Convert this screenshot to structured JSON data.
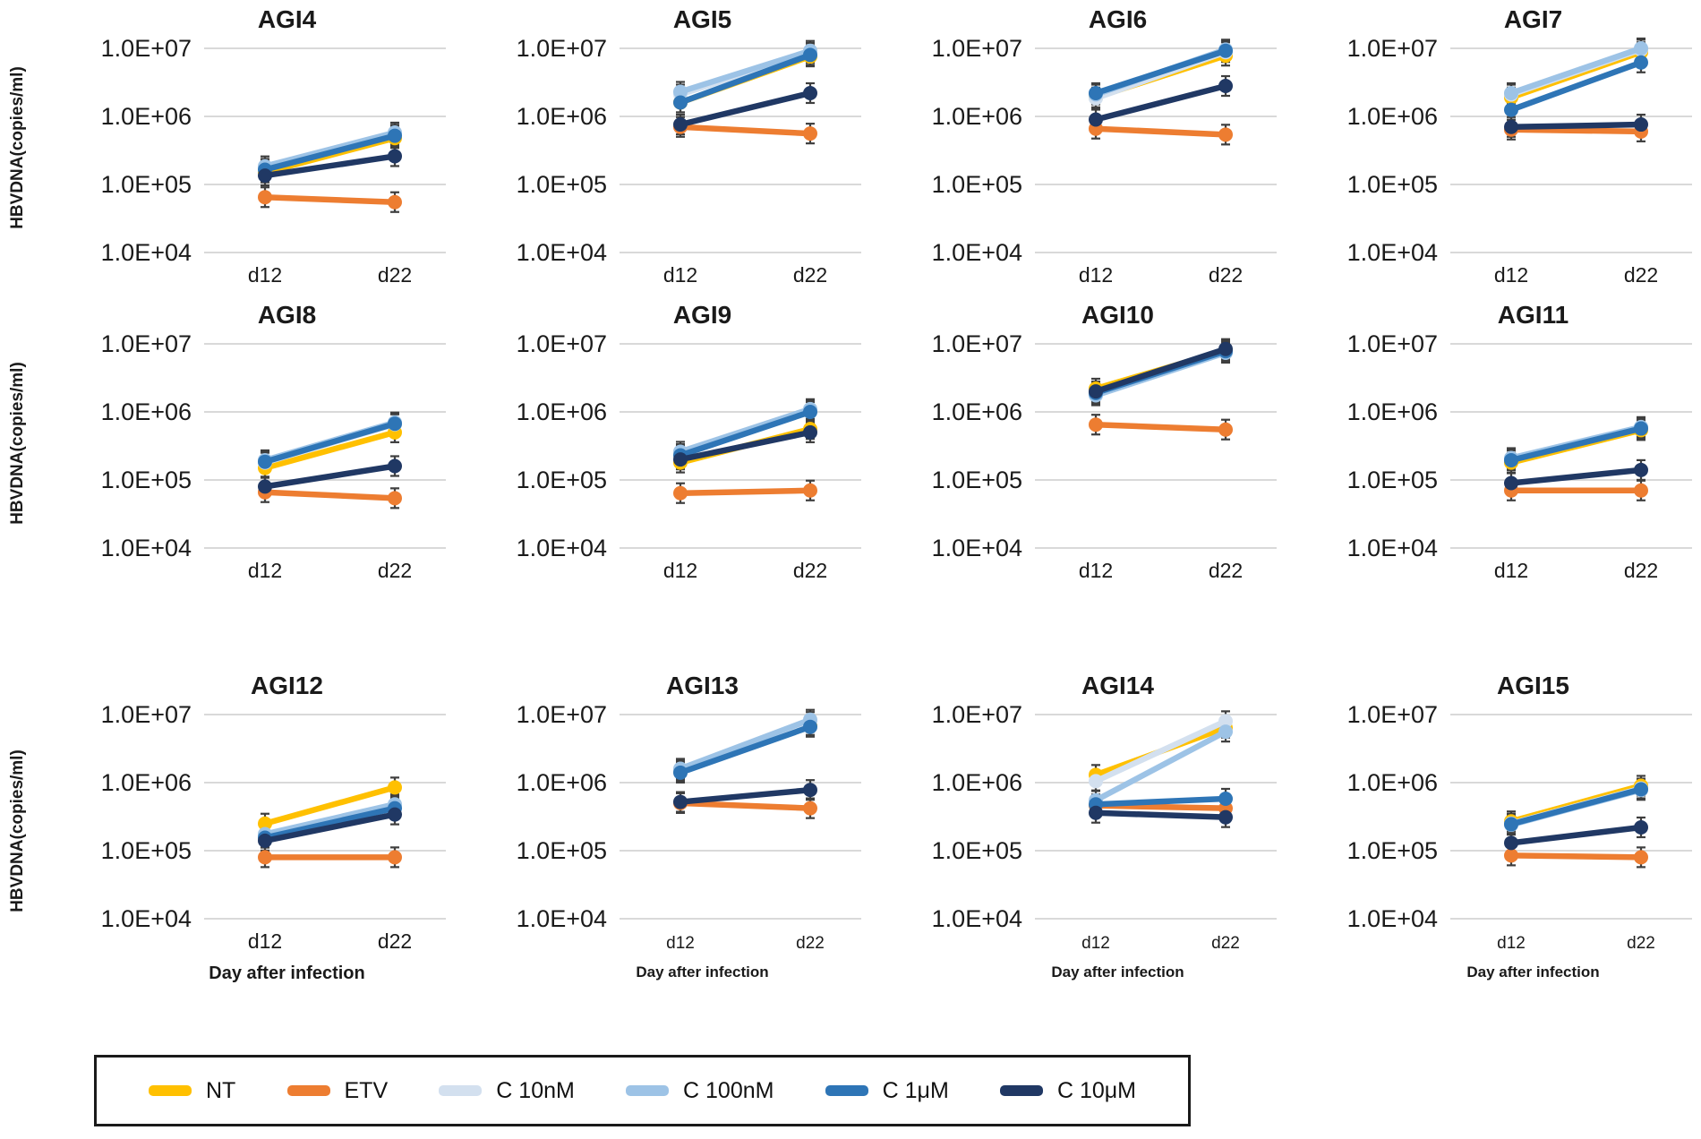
{
  "y_axis_label": "HBVDNA(copies/ml)",
  "x_axis_label": "Day after infection",
  "y_ticks": [
    "1.0E+07",
    "1.0E+06",
    "1.0E+05",
    "1.0E+04"
  ],
  "colors": {
    "gridline": "#d9d9d9",
    "error_bar": "#3f3f3f",
    "legend_border": "#1a1a1a"
  },
  "legend": [
    {
      "name": "NT",
      "label": "NT",
      "color": "#FFC000"
    },
    {
      "name": "ETV",
      "label": "ETV",
      "color": "#ED7D31"
    },
    {
      "name": "C 10nM",
      "label": "C 10nM",
      "color": "#D3E0EF"
    },
    {
      "name": "C 100nM",
      "label": "C 100nM",
      "color": "#9DC3E6"
    },
    {
      "name": "C 1μM",
      "label": "C 1μM",
      "color": "#2E75B6"
    },
    {
      "name": "C 10μM",
      "label": "C 10μM",
      "color": "#203864"
    }
  ],
  "chart_data": [
    {
      "type": "line",
      "title": "AGI4",
      "x": [
        "d12",
        "d22"
      ],
      "yscale": "log",
      "ylim": [
        10000.0,
        10000000.0
      ],
      "grid": true,
      "series": [
        {
          "name": "NT",
          "values": [
            150000.0,
            480000.0
          ]
        },
        {
          "name": "ETV",
          "values": [
            65000.0,
            55000.0
          ]
        },
        {
          "name": "C 10nM",
          "values": [
            170000.0,
            540000.0
          ]
        },
        {
          "name": "C 100nM",
          "values": [
            185000.0,
            580000.0
          ]
        },
        {
          "name": "C 1μM",
          "values": [
            165000.0,
            520000.0
          ]
        },
        {
          "name": "C 10μM",
          "values": [
            135000.0,
            260000.0
          ]
        }
      ]
    },
    {
      "type": "line",
      "title": "AGI5",
      "x": [
        "d12",
        "d22"
      ],
      "yscale": "log",
      "ylim": [
        10000.0,
        10000000.0
      ],
      "grid": true,
      "series": [
        {
          "name": "NT",
          "values": [
            1600000.0,
            7600000.0
          ]
        },
        {
          "name": "ETV",
          "values": [
            700000.0,
            560000.0
          ]
        },
        {
          "name": "C 10nM",
          "values": [
            2100000.0,
            8600000.0
          ]
        },
        {
          "name": "C 100nM",
          "values": [
            2300000.0,
            9200000.0
          ]
        },
        {
          "name": "C 1μM",
          "values": [
            1600000.0,
            8000000.0
          ]
        },
        {
          "name": "C 10μM",
          "values": [
            760000.0,
            2200000.0
          ]
        }
      ]
    },
    {
      "type": "line",
      "title": "AGI6",
      "x": [
        "d12",
        "d22"
      ],
      "yscale": "log",
      "ylim": [
        10000.0,
        10000000.0
      ],
      "grid": true,
      "series": [
        {
          "name": "NT",
          "values": [
            1900000.0,
            7800000.0
          ]
        },
        {
          "name": "ETV",
          "values": [
            660000.0,
            540000.0
          ]
        },
        {
          "name": "C 10nM",
          "values": [
            1850000.0,
            8800000.0
          ]
        },
        {
          "name": "C 100nM",
          "values": [
            2100000.0,
            9600000.0
          ]
        },
        {
          "name": "C 1μM",
          "values": [
            2200000.0,
            9200000.0
          ]
        },
        {
          "name": "C 10μM",
          "values": [
            900000.0,
            2800000.0
          ]
        }
      ]
    },
    {
      "type": "line",
      "title": "AGI7",
      "x": [
        "d12",
        "d22"
      ],
      "yscale": "log",
      "ylim": [
        10000.0,
        10000000.0
      ],
      "grid": true,
      "series": [
        {
          "name": "NT",
          "values": [
            1900000.0,
            8800000.0
          ]
        },
        {
          "name": "ETV",
          "values": [
            640000.0,
            600000.0
          ]
        },
        {
          "name": "C 10nM",
          "values": [
            2100000.0,
            9600000.0
          ]
        },
        {
          "name": "C 100nM",
          "values": [
            2200000.0,
            10000000.0
          ]
        },
        {
          "name": "C 1μM",
          "values": [
            1250000.0,
            6200000.0
          ]
        },
        {
          "name": "C 10μM",
          "values": [
            700000.0,
            760000.0
          ]
        }
      ]
    },
    {
      "type": "line",
      "title": "AGI8",
      "x": [
        "d12",
        "d22"
      ],
      "yscale": "log",
      "ylim": [
        10000.0,
        10000000.0
      ],
      "grid": true,
      "series": [
        {
          "name": "NT",
          "values": [
            150000.0,
            500000.0
          ]
        },
        {
          "name": "ETV",
          "values": [
            66000.0,
            54000.0
          ]
        },
        {
          "name": "C 10nM",
          "values": [
            180000.0,
            660000.0
          ]
        },
        {
          "name": "C 100nM",
          "values": [
            195000.0,
            700000.0
          ]
        },
        {
          "name": "C 1μM",
          "values": [
            185000.0,
            670000.0
          ]
        },
        {
          "name": "C 10μM",
          "values": [
            80000.0,
            160000.0
          ]
        }
      ]
    },
    {
      "type": "line",
      "title": "AGI9",
      "x": [
        "d12",
        "d22"
      ],
      "yscale": "log",
      "ylim": [
        10000.0,
        10000000.0
      ],
      "grid": true,
      "series": [
        {
          "name": "NT",
          "values": [
            180000.0,
            560000.0
          ]
        },
        {
          "name": "ETV",
          "values": [
            64000.0,
            70000.0
          ]
        },
        {
          "name": "C 10nM",
          "values": [
            240000.0,
            1050000.0
          ]
        },
        {
          "name": "C 100nM",
          "values": [
            260000.0,
            1100000.0
          ]
        },
        {
          "name": "C 1μM",
          "values": [
            230000.0,
            1000000.0
          ]
        },
        {
          "name": "C 10μM",
          "values": [
            200000.0,
            500000.0
          ]
        }
      ]
    },
    {
      "type": "line",
      "title": "AGI10",
      "x": [
        "d12",
        "d22"
      ],
      "yscale": "log",
      "ylim": [
        10000.0,
        10000000.0
      ],
      "grid": true,
      "series": [
        {
          "name": "NT",
          "values": [
            2200000.0,
            8000000.0
          ]
        },
        {
          "name": "ETV",
          "values": [
            650000.0,
            550000.0
          ]
        },
        {
          "name": "C 10nM",
          "values": [
            1800000.0,
            7600000.0
          ]
        },
        {
          "name": "C 100nM",
          "values": [
            1750000.0,
            7400000.0
          ]
        },
        {
          "name": "C 1μM",
          "values": [
            1900000.0,
            7800000.0
          ]
        },
        {
          "name": "C 10μM",
          "values": [
            2000000.0,
            8400000.0
          ]
        }
      ]
    },
    {
      "type": "line",
      "title": "AGI11",
      "x": [
        "d12",
        "d22"
      ],
      "yscale": "log",
      "ylim": [
        10000.0,
        10000000.0
      ],
      "grid": true,
      "series": [
        {
          "name": "NT",
          "values": [
            180000.0,
            540000.0
          ]
        },
        {
          "name": "ETV",
          "values": [
            70000.0,
            70000.0
          ]
        },
        {
          "name": "C 10nM",
          "values": [
            200000.0,
            580000.0
          ]
        },
        {
          "name": "C 100nM",
          "values": [
            210000.0,
            600000.0
          ]
        },
        {
          "name": "C 1μM",
          "values": [
            195000.0,
            570000.0
          ]
        },
        {
          "name": "C 10μM",
          "values": [
            90000.0,
            140000.0
          ]
        }
      ]
    },
    {
      "type": "line",
      "title": "AGI12",
      "x": [
        "d12",
        "d22"
      ],
      "yscale": "log",
      "ylim": [
        10000.0,
        10000000.0
      ],
      "grid": true,
      "big_xlabel": true,
      "series": [
        {
          "name": "NT",
          "values": [
            250000.0,
            850000.0
          ]
        },
        {
          "name": "ETV",
          "values": [
            80000.0,
            80000.0
          ]
        },
        {
          "name": "C 10nM",
          "values": [
            170000.0,
            460000.0
          ]
        },
        {
          "name": "C 100nM",
          "values": [
            175000.0,
            480000.0
          ]
        },
        {
          "name": "C 1μM",
          "values": [
            155000.0,
            420000.0
          ]
        },
        {
          "name": "C 10μM",
          "values": [
            140000.0,
            340000.0
          ]
        }
      ]
    },
    {
      "type": "line",
      "title": "AGI13",
      "x": [
        "d12",
        "d22"
      ],
      "yscale": "log",
      "ylim": [
        10000.0,
        10000000.0
      ],
      "grid": true,
      "small_ticks": true,
      "series": [
        {
          "name": "NT",
          "values": [
            1450000.0,
            7000000.0
          ]
        },
        {
          "name": "ETV",
          "values": [
            500000.0,
            420000.0
          ]
        },
        {
          "name": "C 10nM",
          "values": [
            1500000.0,
            7800000.0
          ]
        },
        {
          "name": "C 100nM",
          "values": [
            1600000.0,
            8400000.0
          ]
        },
        {
          "name": "C 1μM",
          "values": [
            1400000.0,
            6600000.0
          ]
        },
        {
          "name": "C 10μM",
          "values": [
            520000.0,
            780000.0
          ]
        }
      ]
    },
    {
      "type": "line",
      "title": "AGI14",
      "x": [
        "d12",
        "d22"
      ],
      "yscale": "log",
      "ylim": [
        10000.0,
        10000000.0
      ],
      "grid": true,
      "small_ticks": true,
      "series": [
        {
          "name": "NT",
          "values": [
            1300000.0,
            6400000.0
          ]
        },
        {
          "name": "ETV",
          "values": [
            460000.0,
            420000.0
          ]
        },
        {
          "name": "C 10nM",
          "values": [
            1050000.0,
            8000000.0
          ]
        },
        {
          "name": "C 100nM",
          "values": [
            550000.0,
            5600000.0
          ]
        },
        {
          "name": "C 1μM",
          "values": [
            480000.0,
            580000.0
          ]
        },
        {
          "name": "C 10μM",
          "values": [
            360000.0,
            310000.0
          ]
        }
      ]
    },
    {
      "type": "line",
      "title": "AGI15",
      "x": [
        "d12",
        "d22"
      ],
      "yscale": "log",
      "ylim": [
        10000.0,
        10000000.0
      ],
      "grid": true,
      "small_ticks": true,
      "series": [
        {
          "name": "NT",
          "values": [
            270000.0,
            900000.0
          ]
        },
        {
          "name": "ETV",
          "values": [
            85000.0,
            80000.0
          ]
        },
        {
          "name": "C 10nM",
          "values": [
            250000.0,
            820000.0
          ]
        },
        {
          "name": "C 100nM",
          "values": [
            240000.0,
            780000.0
          ]
        },
        {
          "name": "C 1μM",
          "values": [
            245000.0,
            800000.0
          ]
        },
        {
          "name": "C 10μM",
          "values": [
            130000.0,
            220000.0
          ]
        }
      ]
    }
  ]
}
